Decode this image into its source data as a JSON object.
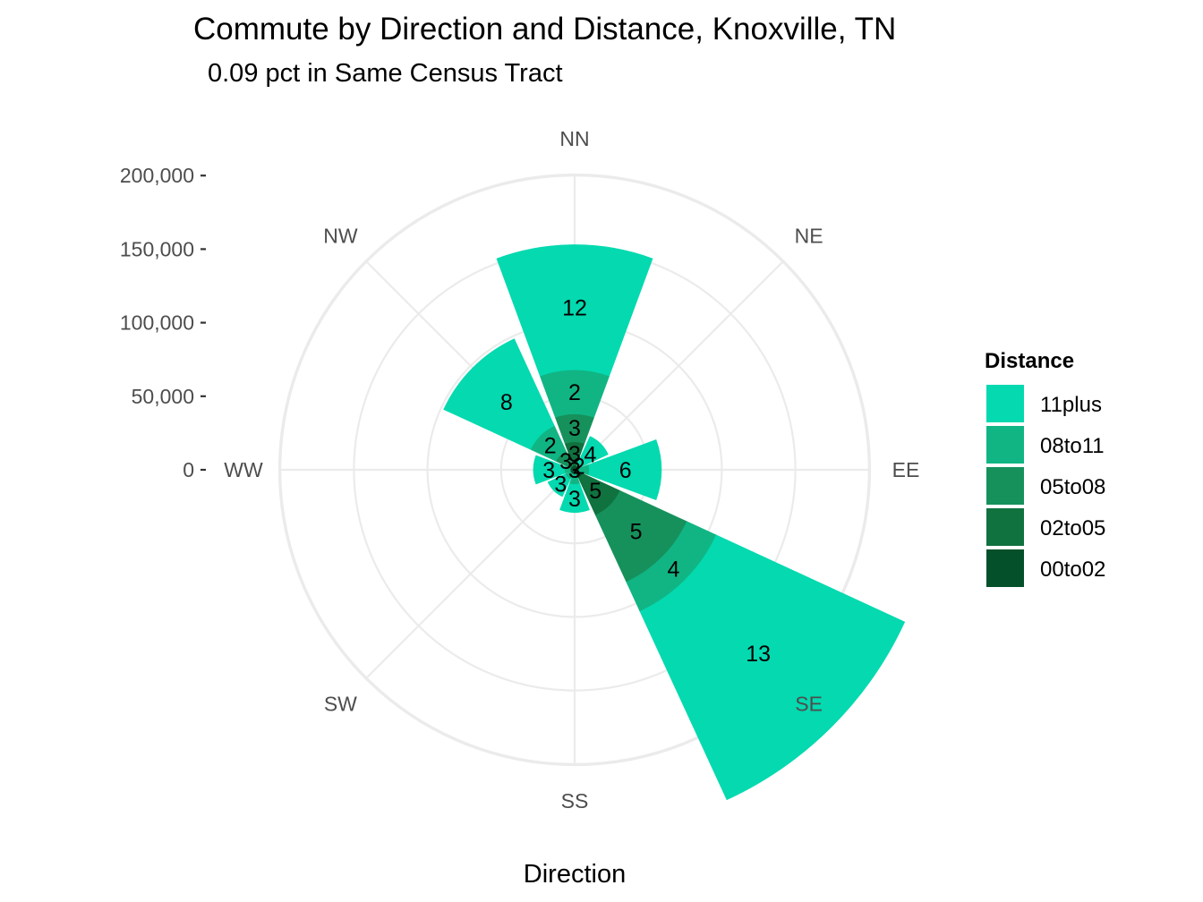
{
  "chart_data": {
    "type": "polar-stacked-bar",
    "title": "Commute by Direction and Distance, Knoxville, TN",
    "subtitle": "0.09 pct in Same Census Tract",
    "xlabel": "Direction",
    "ylabel": "",
    "categories": [
      "NN",
      "NE",
      "EE",
      "SE",
      "SS",
      "SW",
      "WW",
      "NW"
    ],
    "radial_ticks": [
      0,
      50000,
      100000,
      150000,
      200000
    ],
    "radial_tick_labels": [
      "0",
      "50,000",
      "100,000",
      "150,000",
      "200,000"
    ],
    "ylim": [
      0,
      200000
    ],
    "legend_title": "Distance",
    "legend_position": "right",
    "grid": true,
    "series": [
      {
        "name": "00to02",
        "color": "#04502a",
        "values": [
          3000,
          3000,
          3000,
          6000,
          3000,
          3000,
          3000,
          3000
        ],
        "labels": [
          "",
          "",
          "",
          "",
          "",
          "",
          "",
          ""
        ]
      },
      {
        "name": "02to05",
        "color": "#10723f",
        "values": [
          16000,
          0,
          0,
          28000,
          0,
          0,
          0,
          0
        ],
        "labels": [
          "3",
          "",
          "",
          "5",
          "",
          "",
          "",
          ""
        ]
      },
      {
        "name": "05to08",
        "color": "#16915c",
        "values": [
          19000,
          0,
          0,
          50000,
          0,
          0,
          0,
          11000
        ],
        "labels": [
          "3",
          "",
          "",
          "5",
          "",
          "",
          "",
          "3"
        ]
      },
      {
        "name": "08to11",
        "color": "#11b584",
        "values": [
          30000,
          2000,
          7000,
          22000,
          7000,
          4000,
          4000,
          19000
        ],
        "labels": [
          "2",
          "2",
          "",
          "4",
          "",
          "",
          "",
          "2"
        ]
      },
      {
        "name": "11plus",
        "color": "#04d9b0",
        "values": [
          85000,
          20000,
          49000,
          141000,
          19000,
          13000,
          21000,
          65000
        ],
        "labels": [
          "12",
          "4",
          "6",
          "13",
          "3",
          "3",
          "3",
          "8"
        ]
      }
    ],
    "center_label": "3"
  }
}
